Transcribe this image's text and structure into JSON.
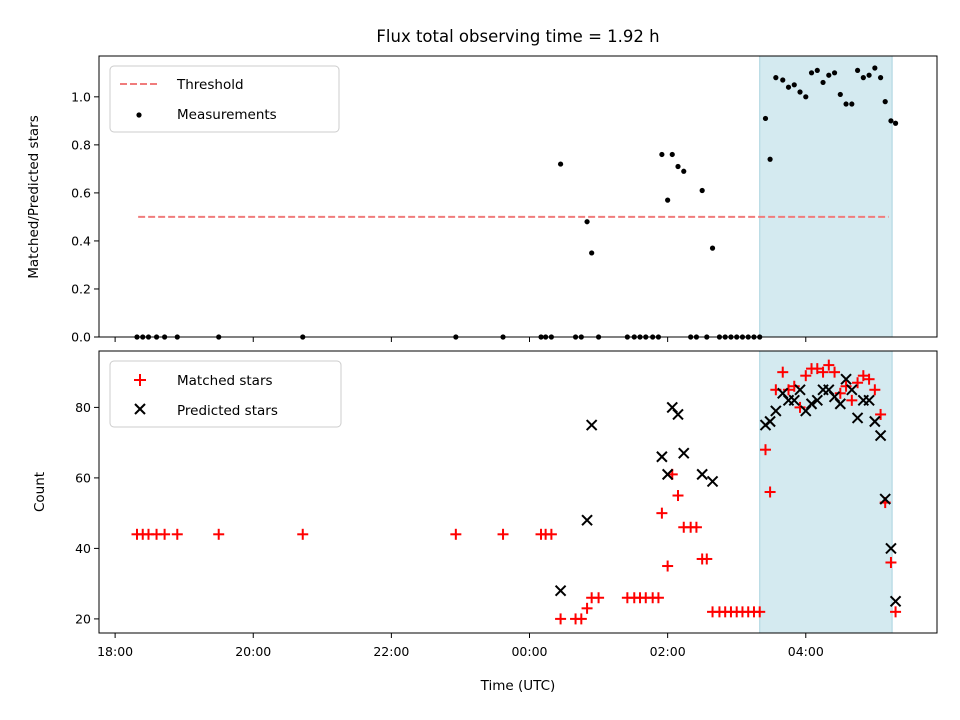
{
  "chart_data": [
    {
      "type": "scatter",
      "title": "Flux total observing time = 1.92 h",
      "xlabel": "",
      "ylabel": "Matched/Predicted stars",
      "xlim": [
        "17:46",
        "05:54"
      ],
      "ylim": [
        0,
        1.17
      ],
      "yticks": [
        "0.0",
        "0.2",
        "0.4",
        "0.6",
        "0.8",
        "1.0"
      ],
      "grid": false,
      "legend_position": "top-left",
      "highlight_span": {
        "from": "03:20",
        "to": "05:15",
        "color": "#d4eaf0"
      },
      "series": [
        {
          "name": "Threshold",
          "style": "dashed-line",
          "color": "#f07c7c",
          "points": [
            [
              "18:20",
              0.5
            ],
            [
              "05:12",
              0.5
            ]
          ]
        },
        {
          "name": "Measurements",
          "style": "dot",
          "color": "#000000",
          "points": [
            [
              "18:19",
              0.0
            ],
            [
              "18:24",
              0.0
            ],
            [
              "18:29",
              0.0
            ],
            [
              "18:36",
              0.0
            ],
            [
              "18:43",
              0.0
            ],
            [
              "18:54",
              0.0
            ],
            [
              "19:30",
              0.0
            ],
            [
              "20:43",
              0.0
            ],
            [
              "22:56",
              0.0
            ],
            [
              "23:37",
              0.0
            ],
            [
              "00:10",
              0.0
            ],
            [
              "00:14",
              0.0
            ],
            [
              "00:19",
              0.0
            ],
            [
              "00:27",
              0.72
            ],
            [
              "00:40",
              0.0
            ],
            [
              "00:45",
              0.0
            ],
            [
              "00:50",
              0.48
            ],
            [
              "00:54",
              0.35
            ],
            [
              "01:00",
              0.0
            ],
            [
              "01:25",
              0.0
            ],
            [
              "01:31",
              0.0
            ],
            [
              "01:36",
              0.0
            ],
            [
              "01:41",
              0.0
            ],
            [
              "01:47",
              0.0
            ],
            [
              "01:52",
              0.0
            ],
            [
              "01:55",
              0.76
            ],
            [
              "02:00",
              0.57
            ],
            [
              "02:04",
              0.76
            ],
            [
              "02:09",
              0.71
            ],
            [
              "02:14",
              0.69
            ],
            [
              "02:20",
              0.0
            ],
            [
              "02:25",
              0.0
            ],
            [
              "02:30",
              0.61
            ],
            [
              "02:34",
              0.0
            ],
            [
              "02:39",
              0.37
            ],
            [
              "02:45",
              0.0
            ],
            [
              "02:50",
              0.0
            ],
            [
              "02:55",
              0.0
            ],
            [
              "03:00",
              0.0
            ],
            [
              "03:05",
              0.0
            ],
            [
              "03:10",
              0.0
            ],
            [
              "03:15",
              0.0
            ],
            [
              "03:20",
              0.0
            ],
            [
              "03:25",
              0.91
            ],
            [
              "03:29",
              0.74
            ],
            [
              "03:34",
              1.08
            ],
            [
              "03:40",
              1.07
            ],
            [
              "03:45",
              1.04
            ],
            [
              "03:50",
              1.05
            ],
            [
              "03:55",
              1.02
            ],
            [
              "04:00",
              1.0
            ],
            [
              "04:05",
              1.1
            ],
            [
              "04:10",
              1.11
            ],
            [
              "04:15",
              1.06
            ],
            [
              "04:20",
              1.09
            ],
            [
              "04:25",
              1.1
            ],
            [
              "04:30",
              1.01
            ],
            [
              "04:35",
              0.97
            ],
            [
              "04:40",
              0.97
            ],
            [
              "04:45",
              1.11
            ],
            [
              "04:50",
              1.08
            ],
            [
              "04:55",
              1.09
            ],
            [
              "05:00",
              1.12
            ],
            [
              "05:05",
              1.08
            ],
            [
              "05:09",
              0.98
            ],
            [
              "05:14",
              0.9
            ],
            [
              "05:18",
              0.89
            ]
          ]
        }
      ]
    },
    {
      "type": "scatter",
      "title": "",
      "xlabel": "Time (UTC)",
      "ylabel": "Count",
      "xlim": [
        "17:46",
        "05:54"
      ],
      "xticks": [
        "18:00",
        "20:00",
        "22:00",
        "00:00",
        "02:00",
        "04:00"
      ],
      "ylim": [
        16,
        96
      ],
      "yticks": [
        "20",
        "40",
        "60",
        "80"
      ],
      "grid": false,
      "legend_position": "top-left",
      "highlight_span": {
        "from": "03:20",
        "to": "05:15",
        "color": "#d4eaf0"
      },
      "series": [
        {
          "name": "Matched stars",
          "marker": "plus",
          "color": "#ff0000",
          "points": [
            [
              "18:19",
              44
            ],
            [
              "18:24",
              44
            ],
            [
              "18:29",
              44
            ],
            [
              "18:36",
              44
            ],
            [
              "18:43",
              44
            ],
            [
              "18:54",
              44
            ],
            [
              "19:30",
              44
            ],
            [
              "20:43",
              44
            ],
            [
              "22:56",
              44
            ],
            [
              "23:37",
              44
            ],
            [
              "00:10",
              44
            ],
            [
              "00:14",
              44
            ],
            [
              "00:19",
              44
            ],
            [
              "00:27",
              20
            ],
            [
              "00:40",
              20
            ],
            [
              "00:45",
              20
            ],
            [
              "00:50",
              23
            ],
            [
              "00:54",
              26
            ],
            [
              "01:00",
              26
            ],
            [
              "01:25",
              26
            ],
            [
              "01:31",
              26
            ],
            [
              "01:36",
              26
            ],
            [
              "01:41",
              26
            ],
            [
              "01:47",
              26
            ],
            [
              "01:52",
              26
            ],
            [
              "01:55",
              50
            ],
            [
              "02:00",
              35
            ],
            [
              "02:04",
              61
            ],
            [
              "02:09",
              55
            ],
            [
              "02:14",
              46
            ],
            [
              "02:20",
              46
            ],
            [
              "02:25",
              46
            ],
            [
              "02:30",
              37
            ],
            [
              "02:34",
              37
            ],
            [
              "02:39",
              22
            ],
            [
              "02:45",
              22
            ],
            [
              "02:50",
              22
            ],
            [
              "02:55",
              22
            ],
            [
              "03:00",
              22
            ],
            [
              "03:05",
              22
            ],
            [
              "03:10",
              22
            ],
            [
              "03:15",
              22
            ],
            [
              "03:20",
              22
            ],
            [
              "03:25",
              68
            ],
            [
              "03:29",
              56
            ],
            [
              "03:34",
              85
            ],
            [
              "03:40",
              90
            ],
            [
              "03:45",
              85
            ],
            [
              "03:50",
              86
            ],
            [
              "03:55",
              80
            ],
            [
              "04:00",
              89
            ],
            [
              "04:05",
              91
            ],
            [
              "04:10",
              91
            ],
            [
              "04:15",
              90
            ],
            [
              "04:20",
              92
            ],
            [
              "04:25",
              90
            ],
            [
              "04:30",
              84
            ],
            [
              "04:35",
              86
            ],
            [
              "04:40",
              82
            ],
            [
              "04:45",
              87
            ],
            [
              "04:50",
              89
            ],
            [
              "04:55",
              88
            ],
            [
              "05:00",
              85
            ],
            [
              "05:05",
              78
            ],
            [
              "05:09",
              53
            ],
            [
              "05:14",
              36
            ],
            [
              "05:18",
              22
            ]
          ]
        },
        {
          "name": "Predicted stars",
          "marker": "cross",
          "color": "#000000",
          "points": [
            [
              "00:27",
              28
            ],
            [
              "00:50",
              48
            ],
            [
              "00:54",
              75
            ],
            [
              "01:55",
              66
            ],
            [
              "02:00",
              61
            ],
            [
              "02:04",
              80
            ],
            [
              "02:09",
              78
            ],
            [
              "02:14",
              67
            ],
            [
              "02:30",
              61
            ],
            [
              "02:39",
              59
            ],
            [
              "03:25",
              75
            ],
            [
              "03:29",
              76
            ],
            [
              "03:34",
              79
            ],
            [
              "03:40",
              84
            ],
            [
              "03:45",
              82
            ],
            [
              "03:50",
              82
            ],
            [
              "03:55",
              85
            ],
            [
              "04:00",
              79
            ],
            [
              "04:05",
              81
            ],
            [
              "04:10",
              82
            ],
            [
              "04:15",
              85
            ],
            [
              "04:20",
              85
            ],
            [
              "04:25",
              83
            ],
            [
              "04:30",
              81
            ],
            [
              "04:35",
              88
            ],
            [
              "04:40",
              85
            ],
            [
              "04:45",
              77
            ],
            [
              "04:50",
              82
            ],
            [
              "04:55",
              82
            ],
            [
              "05:00",
              76
            ],
            [
              "05:05",
              72
            ],
            [
              "05:09",
              54
            ],
            [
              "05:14",
              40
            ],
            [
              "05:18",
              25
            ]
          ]
        }
      ]
    }
  ]
}
